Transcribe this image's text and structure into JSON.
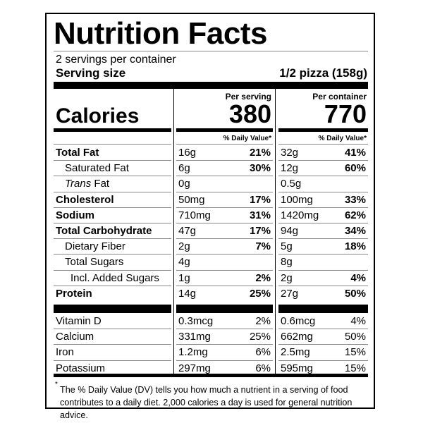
{
  "header": {
    "title": "Nutrition Facts",
    "servings": "2 servings per container",
    "serving_size_label": "Serving size",
    "serving_size_value": "1/2 pizza (158g)"
  },
  "columns": [
    {
      "heading": "Per serving",
      "calories": "380"
    },
    {
      "heading": "Per container",
      "calories": "770"
    }
  ],
  "calories_label": "Calories",
  "daily_value_heading": "% Daily Value*",
  "nutrients": [
    {
      "name": "Total Fat",
      "bold": true,
      "level": 0,
      "cells": [
        [
          "16g",
          "21%"
        ],
        [
          "32g",
          "41%"
        ]
      ]
    },
    {
      "name": "Saturated Fat",
      "bold": false,
      "level": 1,
      "cells": [
        [
          "6g",
          "30%"
        ],
        [
          "12g",
          "60%"
        ]
      ]
    },
    {
      "name_italic": "Trans",
      "name": "Fat",
      "bold": false,
      "level": 1,
      "cells": [
        [
          "0g",
          null
        ],
        [
          "0.5g",
          null
        ]
      ]
    },
    {
      "name": "Cholesterol",
      "bold": true,
      "level": 0,
      "cells": [
        [
          "50mg",
          "17%"
        ],
        [
          "100mg",
          "33%"
        ]
      ]
    },
    {
      "name": "Sodium",
      "bold": true,
      "level": 0,
      "cells": [
        [
          "710mg",
          "31%"
        ],
        [
          "1420mg",
          "62%"
        ]
      ]
    },
    {
      "name": "Total Carbohydrate",
      "bold": true,
      "level": 0,
      "cells": [
        [
          "47g",
          "17%"
        ],
        [
          "94g",
          "34%"
        ]
      ]
    },
    {
      "name": "Dietary Fiber",
      "bold": false,
      "level": 1,
      "cells": [
        [
          "2g",
          "7%"
        ],
        [
          "5g",
          "18%"
        ]
      ]
    },
    {
      "name": "Total Sugars",
      "bold": false,
      "level": 1,
      "cells": [
        [
          "4g",
          null
        ],
        [
          "8g",
          null
        ]
      ]
    },
    {
      "name": "Incl. Added Sugars",
      "bold": false,
      "level": 2,
      "cells": [
        [
          "1g",
          "2%"
        ],
        [
          "2g",
          "4%"
        ]
      ]
    },
    {
      "name": "Protein",
      "bold": true,
      "level": 0,
      "cells": [
        [
          "14g",
          "25%"
        ],
        [
          "27g",
          "50%"
        ]
      ]
    }
  ],
  "vitamins": [
    {
      "name": "Vitamin D",
      "cells": [
        [
          "0.3mcg",
          "2%"
        ],
        [
          "0.6mcg",
          "4%"
        ]
      ]
    },
    {
      "name": "Calcium",
      "cells": [
        [
          "331mg",
          "25%"
        ],
        [
          "662mg",
          "50%"
        ]
      ]
    },
    {
      "name": "Iron",
      "cells": [
        [
          "1.2mg",
          "6%"
        ],
        [
          "2.5mg",
          "15%"
        ]
      ]
    },
    {
      "name": "Potassium",
      "cells": [
        [
          "297mg",
          "6%"
        ],
        [
          "595mg",
          "15%"
        ]
      ]
    }
  ],
  "footnote_marker": "*",
  "footnote": "The % Daily Value (DV) tells you how much a nutrient in a serving of food contributes to a daily diet. 2,000 calories a day is used for general nutrition advice."
}
